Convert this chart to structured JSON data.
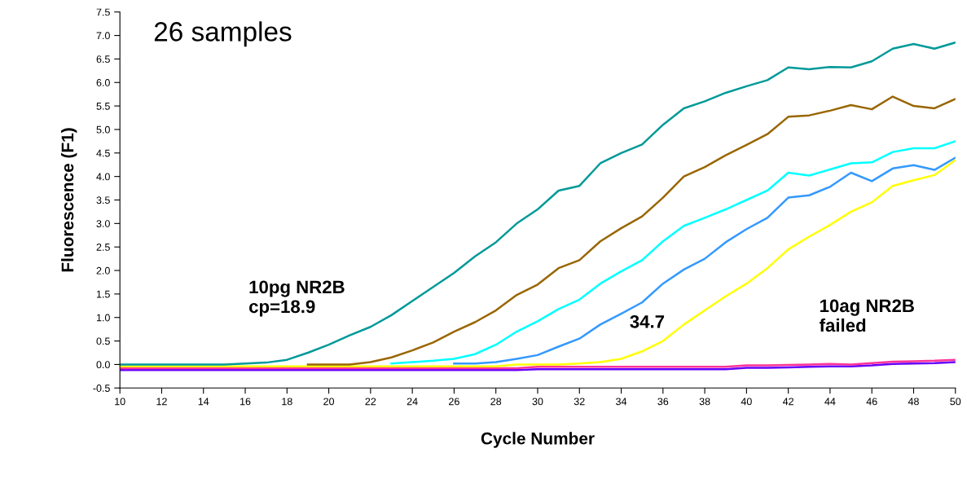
{
  "chart_data": {
    "type": "line",
    "xlabel": "Cycle Number",
    "ylabel": "Fluorescence (F1)",
    "x": [
      10,
      11,
      12,
      13,
      14,
      15,
      16,
      17,
      18,
      19,
      20,
      21,
      22,
      23,
      24,
      25,
      26,
      27,
      28,
      29,
      30,
      31,
      32,
      33,
      34,
      35,
      36,
      37,
      38,
      39,
      40,
      41,
      42,
      43,
      44,
      45,
      46,
      47,
      48,
      49,
      50
    ],
    "xlim": [
      10,
      50
    ],
    "xticks": [
      10,
      12,
      14,
      16,
      18,
      20,
      22,
      24,
      26,
      28,
      30,
      32,
      34,
      36,
      38,
      40,
      42,
      44,
      46,
      48,
      50
    ],
    "ylim": [
      -0.5,
      7.5
    ],
    "yticks": [
      -0.5,
      {
        "value": 0,
        "label": "0.0"
      },
      0.5,
      {
        "value": 1,
        "label": "1.0"
      },
      1.5,
      {
        "value": 2,
        "label": "2.0"
      },
      2.5,
      {
        "value": 3,
        "label": "3.0"
      },
      3.5,
      {
        "value": 4,
        "label": "4.0"
      },
      4.5,
      {
        "value": 5,
        "label": "5.0"
      },
      5.5,
      {
        "value": 6,
        "label": "6.0"
      },
      6.5,
      {
        "value": 7,
        "label": "7.0"
      },
      7.5
    ],
    "grid": false,
    "legend": false,
    "marker": "none",
    "line_style": "solid",
    "annotations": [
      "26 samples",
      "10pg NR2B\ncp=18.9",
      "34.7",
      "10ag NR2B\nfailed"
    ],
    "series": [
      {
        "color": "#6600ff",
        "values": [
          -0.12,
          -0.12,
          -0.12,
          -0.12,
          -0.12,
          -0.12,
          -0.12,
          -0.12,
          -0.12,
          -0.12,
          -0.12,
          -0.12,
          -0.12,
          -0.12,
          -0.12,
          -0.12,
          -0.12,
          -0.12,
          -0.12,
          -0.12,
          -0.1,
          -0.1,
          -0.1,
          -0.1,
          -0.1,
          -0.1,
          -0.1,
          -0.1,
          -0.1,
          -0.1,
          -0.07,
          -0.07,
          -0.06,
          -0.05,
          -0.04,
          -0.04,
          -0.02,
          0.01,
          0.02,
          0.03,
          0.05
        ]
      },
      {
        "color": "#ff3399",
        "values": [
          -0.08,
          -0.08,
          -0.08,
          -0.08,
          -0.08,
          -0.08,
          -0.08,
          -0.08,
          -0.08,
          -0.08,
          -0.08,
          -0.08,
          -0.08,
          -0.08,
          -0.08,
          -0.08,
          -0.08,
          -0.08,
          -0.08,
          -0.08,
          -0.05,
          -0.05,
          -0.05,
          -0.05,
          -0.05,
          -0.05,
          -0.05,
          -0.05,
          -0.05,
          -0.05,
          -0.02,
          -0.02,
          -0.01,
          0.0,
          0.01,
          0.0,
          0.03,
          0.06,
          0.07,
          0.08,
          0.1
        ]
      },
      {
        "color": "#ffff00",
        "values": [
          -0.04,
          -0.04,
          -0.04,
          -0.04,
          -0.04,
          -0.04,
          -0.04,
          -0.04,
          -0.04,
          -0.04,
          -0.04,
          -0.04,
          -0.04,
          -0.04,
          -0.04,
          -0.04,
          -0.04,
          -0.04,
          -0.04,
          0.0,
          0.0,
          0.0,
          0.02,
          0.05,
          0.12,
          0.28,
          0.5,
          0.85,
          1.15,
          1.45,
          1.72,
          2.05,
          2.45,
          2.72,
          2.97,
          3.25,
          3.45,
          3.8,
          3.92,
          4.03,
          4.35
        ]
      },
      {
        "color": "#3399ff",
        "values": [
          null,
          null,
          null,
          null,
          null,
          null,
          null,
          null,
          null,
          null,
          null,
          null,
          null,
          null,
          null,
          null,
          0.02,
          0.02,
          0.05,
          0.12,
          0.2,
          0.38,
          0.55,
          0.85,
          1.08,
          1.32,
          1.72,
          2.02,
          2.25,
          2.6,
          2.88,
          3.12,
          3.55,
          3.6,
          3.78,
          4.08,
          3.9,
          4.17,
          4.24,
          4.14,
          4.4
        ]
      },
      {
        "color": "#00ffff",
        "values": [
          null,
          null,
          null,
          null,
          null,
          null,
          null,
          null,
          null,
          null,
          null,
          null,
          null,
          0.02,
          0.05,
          0.08,
          0.12,
          0.22,
          0.42,
          0.7,
          0.92,
          1.18,
          1.38,
          1.72,
          1.98,
          2.22,
          2.62,
          2.95,
          3.12,
          3.3,
          3.5,
          3.7,
          4.08,
          4.02,
          4.15,
          4.28,
          4.3,
          4.52,
          4.6,
          4.6,
          4.75
        ]
      },
      {
        "color": "#996600",
        "values": [
          null,
          null,
          null,
          null,
          null,
          null,
          null,
          null,
          null,
          0.0,
          0.0,
          0.0,
          0.05,
          0.15,
          0.3,
          0.47,
          0.7,
          0.9,
          1.15,
          1.48,
          1.7,
          2.05,
          2.22,
          2.62,
          2.9,
          3.15,
          3.55,
          4.0,
          4.2,
          4.45,
          4.67,
          4.9,
          5.27,
          5.3,
          5.4,
          5.52,
          5.43,
          5.7,
          5.5,
          5.45,
          5.65
        ]
      },
      {
        "color": "#009999",
        "values": [
          0.0,
          0.0,
          0.0,
          0.0,
          0.0,
          0.0,
          0.02,
          0.04,
          0.1,
          0.25,
          0.42,
          0.62,
          0.8,
          1.05,
          1.35,
          1.65,
          1.95,
          2.3,
          2.6,
          3.0,
          3.3,
          3.7,
          3.8,
          4.28,
          4.5,
          4.68,
          5.1,
          5.45,
          5.6,
          5.78,
          5.92,
          6.05,
          6.32,
          6.28,
          6.33,
          6.32,
          6.45,
          6.72,
          6.82,
          6.72,
          6.85
        ]
      }
    ]
  }
}
